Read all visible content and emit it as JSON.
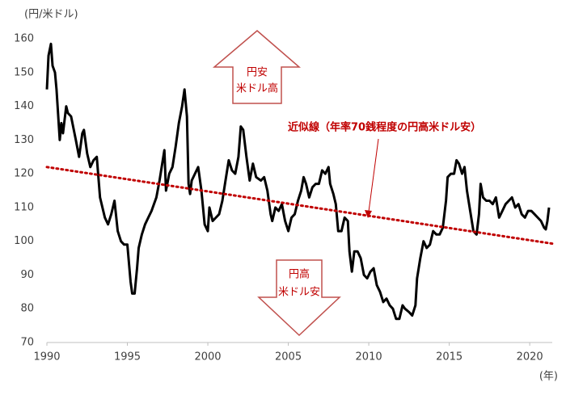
{
  "chart_data": {
    "type": "line",
    "y_unit_label": "(円/米ドル)",
    "x_unit_label": "(年)",
    "annotation": "近似線（年率70銭程度の円高米ドル安）",
    "up_arrow": [
      "円安",
      "米ドル高"
    ],
    "down_arrow": [
      "円高",
      "米ドル安"
    ],
    "xlim": [
      1990,
      2021.4
    ],
    "xticks": [
      1990,
      1995,
      2000,
      2005,
      2010,
      2015,
      2020
    ],
    "ylim": [
      70,
      160
    ],
    "yticks": [
      70,
      80,
      90,
      100,
      110,
      120,
      130,
      140,
      150,
      160
    ],
    "grid": false,
    "series": [
      {
        "color": "#000000",
        "dashed": false,
        "x": [
          1990.0,
          1990.1,
          1990.25,
          1990.35,
          1990.5,
          1990.6,
          1990.8,
          1990.9,
          1991.0,
          1991.2,
          1991.3,
          1991.5,
          1991.8,
          1992.0,
          1992.2,
          1992.3,
          1992.5,
          1992.7,
          1992.9,
          1993.1,
          1993.3,
          1993.6,
          1993.8,
          1994.0,
          1994.2,
          1994.4,
          1994.6,
          1994.8,
          1995.0,
          1995.2,
          1995.3,
          1995.45,
          1995.6,
          1995.7,
          1995.9,
          1996.1,
          1996.3,
          1996.5,
          1996.8,
          1997.0,
          1997.2,
          1997.3,
          1997.4,
          1997.6,
          1997.8,
          1998.0,
          1998.2,
          1998.4,
          1998.55,
          1998.7,
          1998.8,
          1998.9,
          1999.0,
          1999.2,
          1999.4,
          1999.6,
          1999.8,
          2000.0,
          2000.1,
          2000.3,
          2000.5,
          2000.7,
          2000.9,
          2001.1,
          2001.3,
          2001.5,
          2001.7,
          2001.9,
          2002.05,
          2002.2,
          2002.4,
          2002.6,
          2002.8,
          2003.0,
          2003.3,
          2003.5,
          2003.7,
          2003.9,
          2004.0,
          2004.2,
          2004.4,
          2004.6,
          2004.8,
          2005.0,
          2005.2,
          2005.4,
          2005.6,
          2005.8,
          2005.95,
          2006.1,
          2006.3,
          2006.5,
          2006.7,
          2006.9,
          2007.1,
          2007.3,
          2007.5,
          2007.6,
          2007.8,
          2007.95,
          2008.1,
          2008.3,
          2008.5,
          2008.7,
          2008.8,
          2008.95,
          2009.1,
          2009.3,
          2009.5,
          2009.7,
          2009.9,
          2010.1,
          2010.3,
          2010.5,
          2010.7,
          2010.9,
          2011.1,
          2011.3,
          2011.5,
          2011.7,
          2011.9,
          2012.1,
          2012.25,
          2012.5,
          2012.7,
          2012.9,
          2013.0,
          2013.2,
          2013.4,
          2013.6,
          2013.8,
          2014.0,
          2014.2,
          2014.4,
          2014.6,
          2014.8,
          2014.9,
          2015.1,
          2015.3,
          2015.45,
          2015.6,
          2015.8,
          2015.95,
          2016.1,
          2016.3,
          2016.5,
          2016.7,
          2016.85,
          2016.95,
          2017.1,
          2017.3,
          2017.5,
          2017.7,
          2017.9,
          2018.1,
          2018.3,
          2018.5,
          2018.7,
          2018.9,
          2019.1,
          2019.3,
          2019.5,
          2019.7,
          2019.9,
          2020.1,
          2020.3,
          2020.5,
          2020.7,
          2020.9,
          2021.0,
          2021.1,
          2021.2
        ],
        "values": [
          145,
          155,
          158.5,
          152,
          150,
          145,
          130,
          135,
          132,
          140,
          138,
          137,
          130,
          125,
          132,
          133,
          126,
          122,
          124,
          125,
          113,
          107,
          105,
          108,
          112,
          103,
          100,
          99,
          99,
          88,
          84.5,
          84.5,
          92,
          98,
          102,
          105,
          107,
          109,
          113,
          118,
          124,
          127,
          115,
          120,
          122,
          128,
          135,
          140,
          145,
          137,
          117,
          114,
          118,
          120,
          122,
          115,
          105,
          103,
          110,
          106,
          107,
          108,
          112,
          118,
          124,
          121,
          120,
          125,
          134,
          133,
          125,
          118,
          123,
          119,
          118,
          119,
          115,
          108,
          106,
          110,
          109,
          111,
          106,
          103,
          107,
          108,
          112,
          115,
          119,
          117,
          113,
          116,
          117,
          117,
          121,
          120,
          122,
          117,
          114,
          111,
          103,
          103,
          107,
          106,
          97,
          91,
          97,
          97,
          95,
          90,
          89,
          91,
          92,
          87,
          85,
          82,
          83,
          81,
          80,
          77,
          77,
          81,
          80,
          79,
          78,
          81,
          89,
          95,
          100,
          98,
          99,
          103,
          102,
          102,
          104,
          112,
          119,
          120,
          120,
          124,
          123,
          120,
          122,
          115,
          109,
          103,
          102,
          108,
          117,
          113,
          112,
          112,
          111,
          113,
          107,
          109,
          111,
          112,
          113,
          110,
          111,
          108,
          107,
          109,
          109,
          108,
          107,
          106,
          104,
          103.5,
          106,
          110
        ]
      },
      {
        "color": "#c00000",
        "dashed": true,
        "x": [
          1990,
          2021.4
        ],
        "values": [
          122,
          99.3
        ]
      }
    ]
  }
}
